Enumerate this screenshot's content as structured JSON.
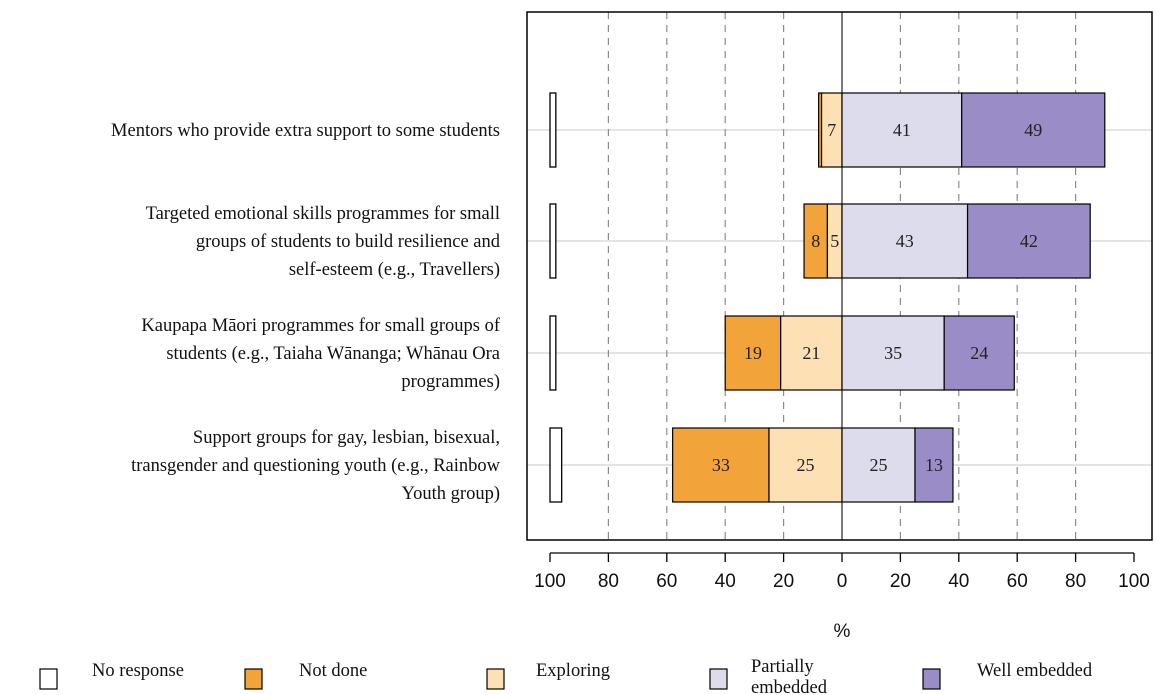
{
  "chart_data": {
    "type": "bar",
    "orientation": "horizontal",
    "stacked": "diverging",
    "categories": [
      [
        "Mentors who provide extra support to some students"
      ],
      [
        "Targeted emotional skills programmes for small",
        "groups of students to build resilience and",
        "self-esteem (e.g., Travellers)"
      ],
      [
        "Kaupapa Māori programmes for small groups of",
        "students (e.g., Taiaha Wānanga; Whānau Ora",
        "programmes)"
      ],
      [
        "Support groups for gay, lesbian, bisexual,",
        "transgender and questioning youth (e.g., Rainbow",
        "Youth group)"
      ]
    ],
    "series": [
      {
        "name": "No response",
        "color": "#ffffff",
        "values": [
          2,
          2,
          2,
          4
        ]
      },
      {
        "name": "Not done",
        "color": "#f2a33a",
        "values": [
          1,
          8,
          19,
          33
        ]
      },
      {
        "name": "Exploring",
        "color": "#fde0b4",
        "values": [
          7,
          5,
          21,
          25
        ]
      },
      {
        "name": "Partially embedded",
        "color": "#dcdcec",
        "values": [
          41,
          43,
          35,
          25
        ]
      },
      {
        "name": "Well embedded",
        "color": "#9a8cc6",
        "values": [
          49,
          42,
          24,
          13
        ]
      }
    ],
    "data_labels": [
      [
        null,
        null,
        "7",
        "41",
        "49"
      ],
      [
        null,
        "8",
        "5",
        "43",
        "42"
      ],
      [
        null,
        "19",
        "21",
        "35",
        "24"
      ],
      [
        null,
        "33",
        "25",
        "25",
        "13"
      ]
    ],
    "xlim": [
      -100,
      100
    ],
    "x_ticks": [
      -100,
      -80,
      -60,
      -40,
      -20,
      0,
      20,
      40,
      60,
      80,
      100
    ],
    "x_tick_labels": [
      "100",
      "80",
      "60",
      "40",
      "20",
      "0",
      "20",
      "40",
      "60",
      "80",
      "100"
    ],
    "gridlines": [
      -80,
      -60,
      -40,
      -20,
      20,
      40,
      60,
      80
    ],
    "xlabel": "%",
    "legend_position": "bottom"
  }
}
